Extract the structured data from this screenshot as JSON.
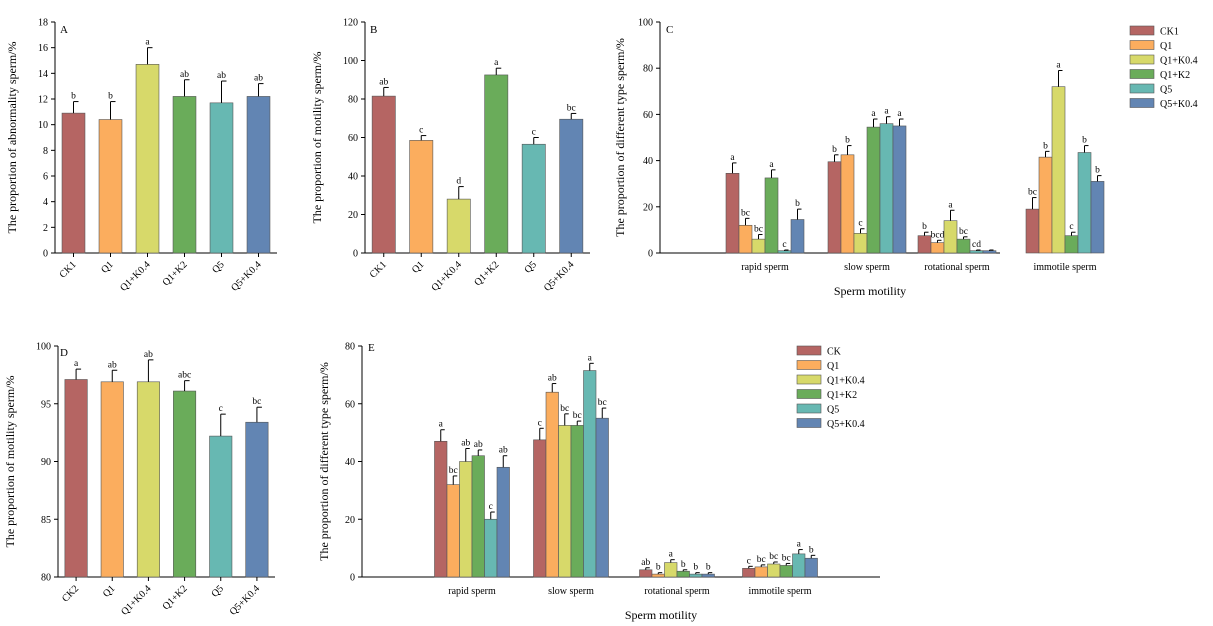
{
  "colors": {
    "CK": "#b56563",
    "Q1": "#fbad5e",
    "Q1K04": "#d7d96a",
    "Q1K2": "#6aac5a",
    "Q5": "#67b8b2",
    "Q5K04": "#6285b3"
  },
  "chart_data": [
    {
      "id": "A",
      "type": "bar",
      "panel_label": "A",
      "ylabel": "The proportion of abnormality sperm/%",
      "ylim": [
        0,
        18
      ],
      "yticks": [
        0,
        2,
        4,
        6,
        8,
        10,
        12,
        14,
        16,
        18
      ],
      "categories": [
        "CK1",
        "Q1",
        "Q1+K0.4",
        "Q1+K2",
        "Q5",
        "Q5+K0.4"
      ],
      "values": [
        10.9,
        10.4,
        14.7,
        12.2,
        11.7,
        12.2
      ],
      "errors": [
        0.9,
        1.4,
        1.3,
        1.3,
        1.7,
        1.0
      ],
      "labels": [
        "b",
        "b",
        "a",
        "ab",
        "ab",
        "ab"
      ]
    },
    {
      "id": "B",
      "type": "bar",
      "panel_label": "B",
      "ylabel": "The proportion of motility sperm/%",
      "ylim": [
        0,
        120
      ],
      "yticks": [
        0,
        20,
        40,
        60,
        80,
        100,
        120
      ],
      "categories": [
        "CK1",
        "Q1",
        "Q1+K0.4",
        "Q1+K2",
        "Q5",
        "Q5+K0.4"
      ],
      "values": [
        81.5,
        58.5,
        28.0,
        92.5,
        56.5,
        69.5
      ],
      "errors": [
        4.5,
        2.5,
        6.5,
        3.5,
        3.5,
        3.0
      ],
      "labels": [
        "ab",
        "c",
        "d",
        "a",
        "c",
        "bc"
      ]
    },
    {
      "id": "C",
      "type": "bar",
      "panel_label": "C",
      "ylabel": "The proportion of different type sperm/%",
      "xlabel": "Sperm motility",
      "ylim": [
        0,
        100
      ],
      "yticks": [
        0,
        20,
        40,
        60,
        80,
        100
      ],
      "categories": [
        "rapid sperm",
        "slow sperm",
        "rotational sperm",
        "immotile sperm"
      ],
      "legend_position": "top-right",
      "series": [
        {
          "name": "CK1",
          "values": [
            34.5,
            39.5,
            7.5,
            19.0
          ],
          "errors": [
            4.5,
            3.0,
            1.5,
            5.0
          ],
          "labels": [
            "a",
            "b",
            "b",
            "bc"
          ]
        },
        {
          "name": "Q1",
          "values": [
            12.0,
            42.5,
            4.5,
            41.5
          ],
          "errors": [
            3.0,
            4.0,
            1.0,
            2.5
          ],
          "labels": [
            "bc",
            "b",
            "bcd",
            "b"
          ]
        },
        {
          "name": "Q1+K0.4",
          "values": [
            6.0,
            8.5,
            14.0,
            72.0
          ],
          "errors": [
            2.0,
            2.0,
            4.5,
            7.0
          ],
          "labels": [
            "bc",
            "c",
            "a",
            "a"
          ]
        },
        {
          "name": "Q1+K2",
          "values": [
            32.5,
            54.5,
            6.0,
            7.5
          ],
          "errors": [
            3.5,
            3.5,
            1.0,
            1.5
          ],
          "labels": [
            "a",
            "a",
            "bc",
            "c"
          ]
        },
        {
          "name": "Q5",
          "values": [
            1.0,
            56.0,
            1.0,
            43.5
          ],
          "errors": [
            0.3,
            3.0,
            0.3,
            3.0
          ],
          "labels": [
            "c",
            "a",
            "cd",
            "b"
          ]
        },
        {
          "name": "Q5+K0.4",
          "values": [
            14.5,
            55.0,
            1.0,
            31.0
          ],
          "errors": [
            4.5,
            3.0,
            0.3,
            2.5
          ],
          "labels": [
            "b",
            "a",
            "",
            "b"
          ]
        }
      ]
    },
    {
      "id": "D",
      "type": "bar",
      "panel_label": "D",
      "ylabel": "The proportion of motility sperm/%",
      "ylim": [
        80,
        100
      ],
      "yticks": [
        80,
        85,
        90,
        95,
        100
      ],
      "categories": [
        "CK2",
        "Q1",
        "Q1+K0.4",
        "Q1+K2",
        "Q5",
        "Q5+K0.4"
      ],
      "values": [
        97.1,
        96.9,
        96.9,
        96.1,
        92.2,
        93.4
      ],
      "errors": [
        0.9,
        1.0,
        1.9,
        0.9,
        1.9,
        1.3
      ],
      "labels": [
        "a",
        "ab",
        "ab",
        "abc",
        "c",
        "bc"
      ]
    },
    {
      "id": "E",
      "type": "bar",
      "panel_label": "E",
      "ylabel": "The proportion of different type sperm/%",
      "xlabel": "Sperm motility",
      "ylim": [
        0,
        80
      ],
      "yticks": [
        0,
        20,
        40,
        60,
        80
      ],
      "categories": [
        "rapid sperm",
        "slow sperm",
        "rotational sperm",
        "immotile sperm"
      ],
      "legend_position": "top-right",
      "series": [
        {
          "name": "CK",
          "values": [
            47.0,
            47.5,
            2.5,
            3.0
          ],
          "errors": [
            4.0,
            4.0,
            0.7,
            0.7
          ],
          "labels": [
            "a",
            "c",
            "ab",
            "c"
          ]
        },
        {
          "name": "Q1",
          "values": [
            32.0,
            64.0,
            1.0,
            3.5
          ],
          "errors": [
            3.0,
            3.0,
            0.5,
            0.7
          ],
          "labels": [
            "bc",
            "ab",
            "b",
            "bc"
          ]
        },
        {
          "name": "Q1+K0.4",
          "values": [
            40.0,
            52.5,
            5.0,
            4.5
          ],
          "errors": [
            4.5,
            4.0,
            1.0,
            0.7
          ],
          "labels": [
            "ab",
            "bc",
            "a",
            "bc"
          ]
        },
        {
          "name": "Q1+K2",
          "values": [
            42.0,
            52.5,
            2.0,
            4.0
          ],
          "errors": [
            2.0,
            1.5,
            0.5,
            0.7
          ],
          "labels": [
            "ab",
            "bc",
            "b",
            "bc"
          ]
        },
        {
          "name": "Q5",
          "values": [
            20.0,
            71.5,
            1.0,
            8.0
          ],
          "errors": [
            2.5,
            2.5,
            0.5,
            1.5
          ],
          "labels": [
            "c",
            "a",
            "b",
            "a"
          ]
        },
        {
          "name": "Q5+K0.4",
          "values": [
            38.0,
            55.0,
            1.0,
            6.5
          ],
          "errors": [
            4.0,
            3.5,
            0.5,
            1.0
          ],
          "labels": [
            "ab",
            "bc",
            "b",
            "b"
          ]
        }
      ]
    }
  ]
}
